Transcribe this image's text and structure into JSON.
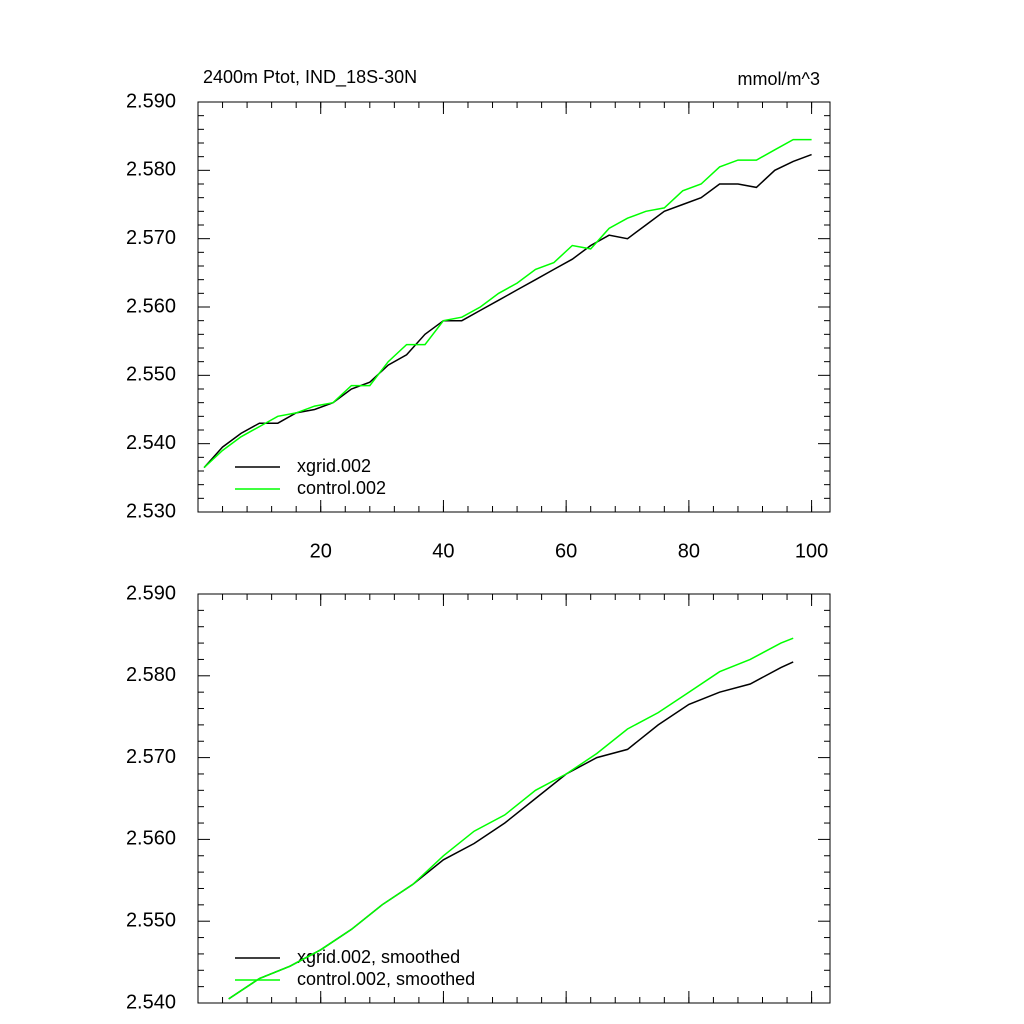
{
  "chart_data": [
    {
      "type": "line",
      "title": "2400m Ptot, IND_18S-30N",
      "units": "mmol/m^3",
      "x": [
        1,
        4,
        7,
        10,
        13,
        16,
        19,
        22,
        25,
        28,
        31,
        34,
        37,
        40,
        43,
        46,
        49,
        52,
        55,
        58,
        61,
        64,
        67,
        70,
        73,
        76,
        79,
        82,
        85,
        88,
        91,
        94,
        97,
        100
      ],
      "series": [
        {
          "name": "xgrid.002",
          "color": "#000000",
          "values": [
            2.5365,
            2.5395,
            2.5415,
            2.543,
            2.543,
            2.5445,
            2.545,
            2.546,
            2.548,
            2.549,
            2.5515,
            2.553,
            2.556,
            2.558,
            2.558,
            2.5595,
            2.561,
            2.5625,
            2.564,
            2.5655,
            2.567,
            2.569,
            2.5705,
            2.57,
            2.572,
            2.574,
            2.575,
            2.576,
            2.578,
            2.578,
            2.5775,
            2.58,
            2.5813,
            2.5823
          ]
        },
        {
          "name": "control.002",
          "color": "#00ff00",
          "values": [
            2.5365,
            2.539,
            2.541,
            2.5425,
            2.544,
            2.5445,
            2.5455,
            2.546,
            2.5485,
            2.5485,
            2.552,
            2.5545,
            2.5545,
            2.558,
            2.5585,
            2.56,
            2.562,
            2.5635,
            2.5655,
            2.5665,
            2.569,
            2.5685,
            2.5715,
            2.573,
            2.574,
            2.5745,
            2.577,
            2.578,
            2.5805,
            2.5815,
            2.5815,
            2.583,
            2.5845,
            2.5845
          ]
        }
      ],
      "xlim": [
        0,
        103
      ],
      "xticks": [
        20,
        40,
        60,
        80,
        100
      ],
      "ylim": [
        2.53,
        2.59
      ],
      "yticks": [
        {
          "value": 2.53,
          "label": "2.530"
        },
        {
          "value": 2.54,
          "label": "2.540"
        },
        {
          "value": 2.55,
          "label": "2.550"
        },
        {
          "value": 2.56,
          "label": "2.560"
        },
        {
          "value": 2.57,
          "label": "2.570"
        },
        {
          "value": 2.58,
          "label": "2.580"
        },
        {
          "value": 2.59,
          "label": "2.590"
        }
      ],
      "legend": "lower left"
    },
    {
      "type": "line",
      "x": [
        5,
        10,
        15,
        20,
        25,
        30,
        35,
        40,
        45,
        50,
        55,
        60,
        65,
        70,
        75,
        80,
        85,
        90,
        95,
        97
      ],
      "series": [
        {
          "name": "xgrid.002, smoothed",
          "color": "#000000",
          "values": [
            2.5405,
            2.543,
            2.5445,
            2.5465,
            2.549,
            2.552,
            2.5545,
            2.5575,
            2.5595,
            2.562,
            2.565,
            2.568,
            2.57,
            2.571,
            2.574,
            2.5765,
            2.578,
            2.579,
            2.581,
            2.5817
          ]
        },
        {
          "name": "control.002, smoothed",
          "color": "#00ff00",
          "values": [
            2.5405,
            2.543,
            2.5445,
            2.5465,
            2.549,
            2.552,
            2.5545,
            2.558,
            2.561,
            2.563,
            2.566,
            2.568,
            2.5705,
            2.5735,
            2.5755,
            2.578,
            2.5805,
            2.582,
            2.584,
            2.5846
          ]
        }
      ],
      "xlim": [
        0,
        103
      ],
      "ylim": [
        2.54,
        2.59
      ],
      "yticks": [
        {
          "value": 2.54,
          "label": "2.540"
        },
        {
          "value": 2.55,
          "label": "2.550"
        },
        {
          "value": 2.56,
          "label": "2.560"
        },
        {
          "value": 2.57,
          "label": "2.570"
        },
        {
          "value": 2.58,
          "label": "2.580"
        },
        {
          "value": 2.59,
          "label": "2.590"
        }
      ],
      "legend": "lower left"
    }
  ]
}
